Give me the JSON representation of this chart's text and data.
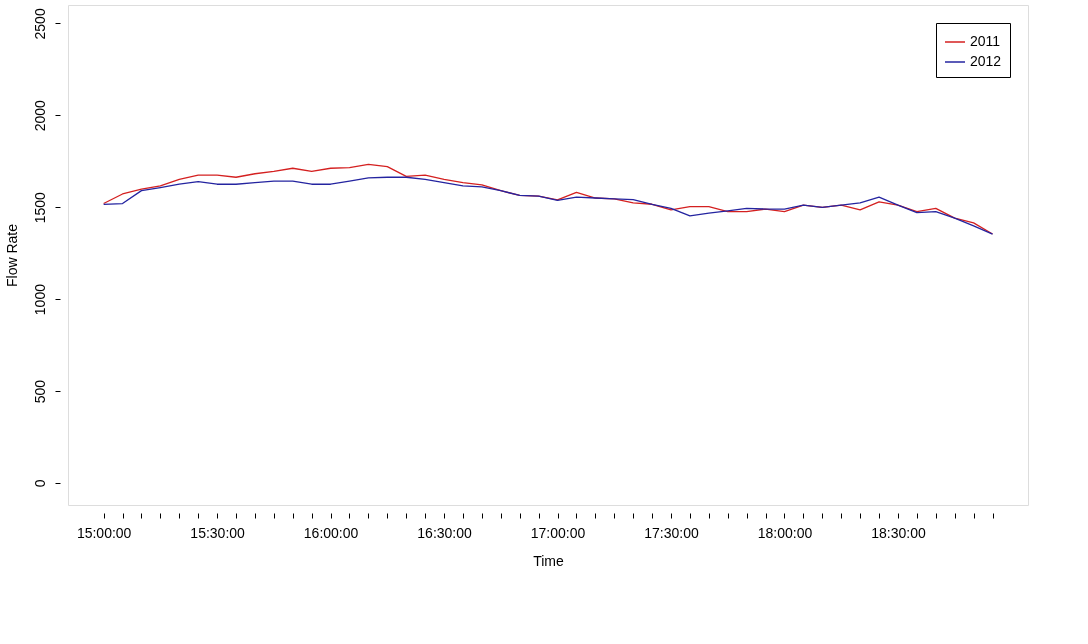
{
  "chart_data": {
    "type": "line",
    "xlabel": "Time",
    "ylabel": "Flow Rate",
    "x": [
      15,
      15.0833,
      15.1667,
      15.25,
      15.3333,
      15.4167,
      15.5,
      15.5833,
      15.6667,
      15.75,
      15.8333,
      15.9167,
      16,
      16.0833,
      16.1667,
      16.25,
      16.3333,
      16.4167,
      16.5,
      16.5833,
      16.6667,
      16.75,
      16.8333,
      16.9167,
      17,
      17.0833,
      17.1667,
      17.25,
      17.3333,
      17.4167,
      17.5,
      17.5833,
      17.6667,
      17.75,
      17.8333,
      17.9167,
      18,
      18.0833,
      18.1667,
      18.25,
      18.3333,
      18.4167,
      18.5,
      18.5833,
      18.6667,
      18.75,
      18.8333,
      18.9167
    ],
    "series": [
      {
        "name": "2011",
        "color": "#d42020",
        "values": [
          1520,
          1572,
          1598,
          1616,
          1651,
          1674,
          1674,
          1663,
          1682,
          1695,
          1712,
          1695,
          1712,
          1715,
          1733,
          1721,
          1668,
          1674,
          1651,
          1634,
          1622,
          1590,
          1564,
          1560,
          1540,
          1581,
          1550,
          1545,
          1524,
          1516,
          1485,
          1503,
          1503,
          1476,
          1476,
          1490,
          1476,
          1511,
          1499,
          1511,
          1485,
          1529,
          1511,
          1476,
          1494,
          1441,
          1415,
          1354
        ]
      },
      {
        "name": "2012",
        "color": "#2424a0",
        "values": [
          1515,
          1520,
          1590,
          1607,
          1625,
          1639,
          1625,
          1625,
          1634,
          1642,
          1642,
          1625,
          1625,
          1642,
          1660,
          1663,
          1663,
          1651,
          1634,
          1616,
          1611,
          1590,
          1564,
          1560,
          1537,
          1555,
          1550,
          1545,
          1541,
          1516,
          1494,
          1453,
          1468,
          1480,
          1494,
          1490,
          1490,
          1511,
          1499,
          1511,
          1524,
          1555,
          1511,
          1470,
          1476,
          1441,
          1398,
          1354
        ]
      }
    ],
    "xlim": [
      14.843,
      19.073
    ],
    "ylim": [
      -120,
      2600
    ],
    "xticks": [
      {
        "value": 15,
        "label": "15:00:00"
      },
      {
        "value": 15.0833,
        "label": null
      },
      {
        "value": 15.1667,
        "label": null
      },
      {
        "value": 15.25,
        "label": null
      },
      {
        "value": 15.3333,
        "label": null
      },
      {
        "value": 15.4167,
        "label": null
      },
      {
        "value": 15.5,
        "label": "15:30:00"
      },
      {
        "value": 15.5833,
        "label": null
      },
      {
        "value": 15.6667,
        "label": null
      },
      {
        "value": 15.75,
        "label": null
      },
      {
        "value": 15.8333,
        "label": null
      },
      {
        "value": 15.9167,
        "label": null
      },
      {
        "value": 16,
        "label": "16:00:00"
      },
      {
        "value": 16.0833,
        "label": null
      },
      {
        "value": 16.1667,
        "label": null
      },
      {
        "value": 16.25,
        "label": null
      },
      {
        "value": 16.3333,
        "label": null
      },
      {
        "value": 16.4167,
        "label": null
      },
      {
        "value": 16.5,
        "label": "16:30:00"
      },
      {
        "value": 16.5833,
        "label": null
      },
      {
        "value": 16.6667,
        "label": null
      },
      {
        "value": 16.75,
        "label": null
      },
      {
        "value": 16.8333,
        "label": null
      },
      {
        "value": 16.9167,
        "label": null
      },
      {
        "value": 17,
        "label": "17:00:00"
      },
      {
        "value": 17.0833,
        "label": null
      },
      {
        "value": 17.1667,
        "label": null
      },
      {
        "value": 17.25,
        "label": null
      },
      {
        "value": 17.3333,
        "label": null
      },
      {
        "value": 17.4167,
        "label": null
      },
      {
        "value": 17.5,
        "label": "17:30:00"
      },
      {
        "value": 17.5833,
        "label": null
      },
      {
        "value": 17.6667,
        "label": null
      },
      {
        "value": 17.75,
        "label": null
      },
      {
        "value": 17.8333,
        "label": null
      },
      {
        "value": 17.9167,
        "label": null
      },
      {
        "value": 18,
        "label": "18:00:00"
      },
      {
        "value": 18.0833,
        "label": null
      },
      {
        "value": 18.1667,
        "label": null
      },
      {
        "value": 18.25,
        "label": null
      },
      {
        "value": 18.3333,
        "label": null
      },
      {
        "value": 18.4167,
        "label": null
      },
      {
        "value": 18.5,
        "label": "18:30:00"
      },
      {
        "value": 18.5833,
        "label": null
      },
      {
        "value": 18.6667,
        "label": null
      },
      {
        "value": 18.75,
        "label": null
      },
      {
        "value": 18.8333,
        "label": null
      },
      {
        "value": 18.9167,
        "label": null
      }
    ],
    "yticks": [
      0,
      500,
      1000,
      1500,
      2000,
      2500
    ],
    "legend": "top right",
    "line_style": "solid"
  }
}
